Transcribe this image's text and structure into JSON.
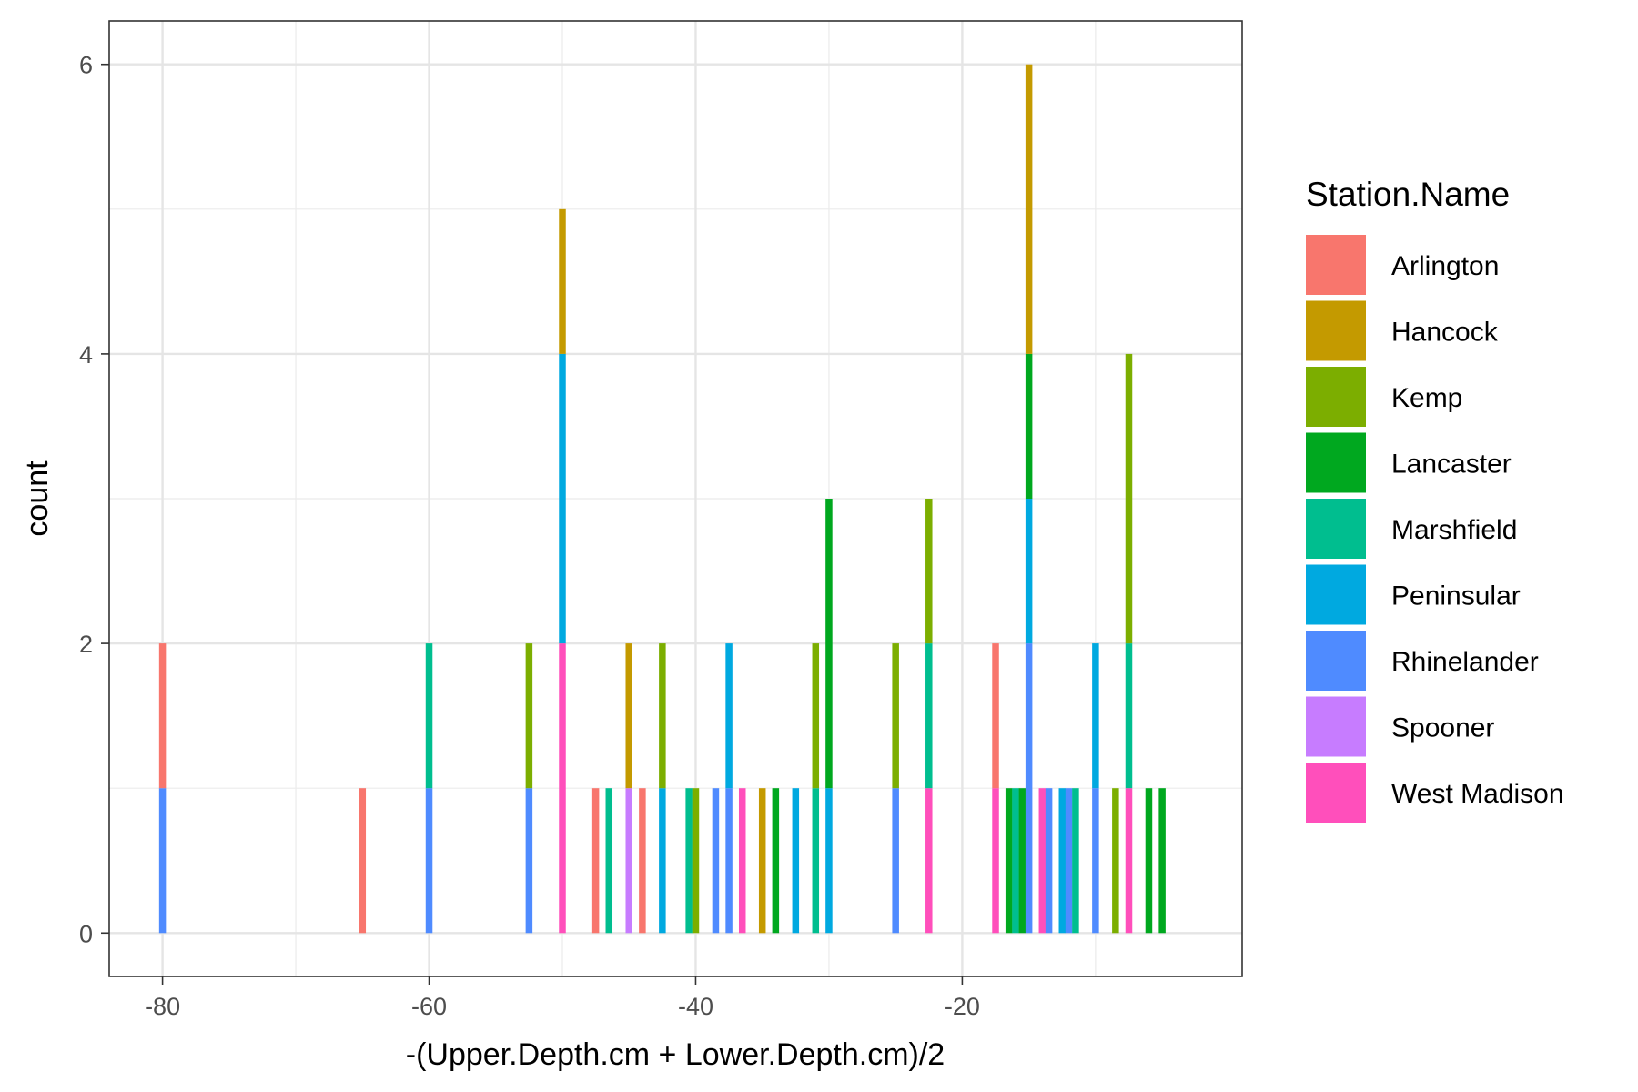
{
  "chart_data": {
    "type": "bar",
    "subtype": "stacked-histogram",
    "xlabel": "-(Upper.Depth.cm + Lower.Depth.cm)/2",
    "ylabel": "count",
    "xlim": [
      -84,
      1
    ],
    "ylim": [
      -0.3,
      6.3
    ],
    "x_ticks": [
      -80,
      -60,
      -40,
      -20
    ],
    "y_ticks": [
      0,
      2,
      4,
      6
    ],
    "grid": true,
    "legend": {
      "title": "Station.Name",
      "position": "right",
      "entries": [
        {
          "name": "Arlington",
          "color": "#F8766D"
        },
        {
          "name": "Hancock",
          "color": "#C49A00"
        },
        {
          "name": "Kemp",
          "color": "#7CAE00"
        },
        {
          "name": "Lancaster",
          "color": "#00A81F"
        },
        {
          "name": "Marshfield",
          "color": "#00BE8F"
        },
        {
          "name": "Peninsular",
          "color": "#00A9E0"
        },
        {
          "name": "Rhinelander",
          "color": "#4F8BFF"
        },
        {
          "name": "Spooner",
          "color": "#C77CFF"
        },
        {
          "name": "West Madison",
          "color": "#FF4FBB"
        }
      ]
    },
    "bins": [
      {
        "x": -80,
        "counts": {
          "Rhinelander": 1,
          "Arlington": 1
        }
      },
      {
        "x": -65,
        "counts": {
          "Arlington": 1
        }
      },
      {
        "x": -60,
        "counts": {
          "Rhinelander": 1,
          "Marshfield": 1
        }
      },
      {
        "x": -52.5,
        "counts": {
          "Rhinelander": 1,
          "Kemp": 1
        }
      },
      {
        "x": -50,
        "counts": {
          "West Madison": 2,
          "Peninsular": 2,
          "Hancock": 1
        }
      },
      {
        "x": -47.5,
        "counts": {
          "Arlington": 1
        }
      },
      {
        "x": -46.5,
        "counts": {
          "Marshfield": 1
        }
      },
      {
        "x": -45,
        "counts": {
          "Spooner": 1,
          "Hancock": 1
        }
      },
      {
        "x": -44,
        "counts": {
          "Arlington": 1
        }
      },
      {
        "x": -42.5,
        "counts": {
          "Peninsular": 1,
          "Kemp": 1
        }
      },
      {
        "x": -40.5,
        "counts": {
          "Marshfield": 1
        }
      },
      {
        "x": -40,
        "counts": {
          "Kemp": 1
        }
      },
      {
        "x": -38.5,
        "counts": {
          "Rhinelander": 1
        }
      },
      {
        "x": -37.5,
        "counts": {
          "Rhinelander": 1,
          "Peninsular": 1
        }
      },
      {
        "x": -36.5,
        "counts": {
          "West Madison": 1
        }
      },
      {
        "x": -35,
        "counts": {
          "Hancock": 1
        }
      },
      {
        "x": -34,
        "counts": {
          "Lancaster": 1
        }
      },
      {
        "x": -32.5,
        "counts": {
          "Peninsular": 1
        }
      },
      {
        "x": -31,
        "counts": {
          "Marshfield": 1,
          "Kemp": 1
        }
      },
      {
        "x": -30,
        "counts": {
          "Peninsular": 1,
          "Lancaster": 2
        }
      },
      {
        "x": -25,
        "counts": {
          "Rhinelander": 1,
          "Kemp": 1
        }
      },
      {
        "x": -22.5,
        "counts": {
          "West Madison": 1,
          "Marshfield": 1,
          "Kemp": 1
        }
      },
      {
        "x": -17.5,
        "counts": {
          "West Madison": 1,
          "Arlington": 1
        }
      },
      {
        "x": -16.5,
        "counts": {
          "Lancaster": 1
        }
      },
      {
        "x": -16,
        "counts": {
          "Marshfield": 1
        }
      },
      {
        "x": -15.5,
        "counts": {
          "Lancaster": 1
        }
      },
      {
        "x": -15,
        "counts": {
          "Rhinelander": 2,
          "Peninsular": 1,
          "Lancaster": 1,
          "Hancock": 2
        }
      },
      {
        "x": -14,
        "counts": {
          "West Madison": 1
        }
      },
      {
        "x": -13.5,
        "counts": {
          "Rhinelander": 1
        }
      },
      {
        "x": -12.5,
        "counts": {
          "Peninsular": 1
        }
      },
      {
        "x": -12,
        "counts": {
          "Rhinelander": 1
        }
      },
      {
        "x": -11.5,
        "counts": {
          "Marshfield": 1
        }
      },
      {
        "x": -10,
        "counts": {
          "Rhinelander": 1,
          "Peninsular": 1
        }
      },
      {
        "x": -8.5,
        "counts": {
          "Kemp": 1
        }
      },
      {
        "x": -7.5,
        "counts": {
          "West Madison": 1,
          "Marshfield": 1,
          "Kemp": 2
        }
      },
      {
        "x": -6,
        "counts": {
          "Lancaster": 1
        }
      },
      {
        "x": -5,
        "counts": {
          "Lancaster": 1
        }
      }
    ]
  }
}
